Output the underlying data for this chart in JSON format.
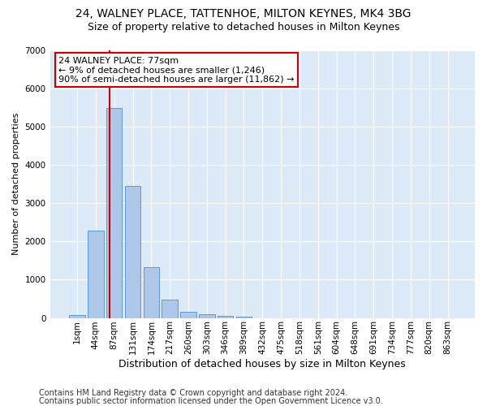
{
  "title1": "24, WALNEY PLACE, TATTENHOE, MILTON KEYNES, MK4 3BG",
  "title2": "Size of property relative to detached houses in Milton Keynes",
  "xlabel": "Distribution of detached houses by size in Milton Keynes",
  "ylabel": "Number of detached properties",
  "footnote1": "Contains HM Land Registry data © Crown copyright and database right 2024.",
  "footnote2": "Contains public sector information licensed under the Open Government Licence v3.0.",
  "bar_color": "#aec6e8",
  "bar_edge_color": "#5b9bd5",
  "bg_color": "#dce9f7",
  "grid_color": "#ffffff",
  "annotation_box_color": "#cc0000",
  "vline_color": "#cc0000",
  "categories": [
    "1sqm",
    "44sqm",
    "87sqm",
    "131sqm",
    "174sqm",
    "217sqm",
    "260sqm",
    "303sqm",
    "346sqm",
    "389sqm",
    "432sqm",
    "475sqm",
    "518sqm",
    "561sqm",
    "604sqm",
    "648sqm",
    "691sqm",
    "734sqm",
    "777sqm",
    "820sqm",
    "863sqm"
  ],
  "values": [
    75,
    2280,
    5480,
    3450,
    1320,
    470,
    160,
    95,
    60,
    35,
    0,
    0,
    0,
    0,
    0,
    0,
    0,
    0,
    0,
    0,
    0
  ],
  "annotation_lines": [
    "24 WALNEY PLACE: 77sqm",
    "← 9% of detached houses are smaller (1,246)",
    "90% of semi-detached houses are larger (11,862) →"
  ],
  "vline_x_index": 1.76,
  "ylim": [
    0,
    7000
  ],
  "yticks": [
    0,
    1000,
    2000,
    3000,
    4000,
    5000,
    6000,
    7000
  ],
  "title1_fontsize": 10,
  "title2_fontsize": 9,
  "xlabel_fontsize": 9,
  "ylabel_fontsize": 8,
  "tick_fontsize": 7.5,
  "annotation_fontsize": 8,
  "footnote_fontsize": 7
}
